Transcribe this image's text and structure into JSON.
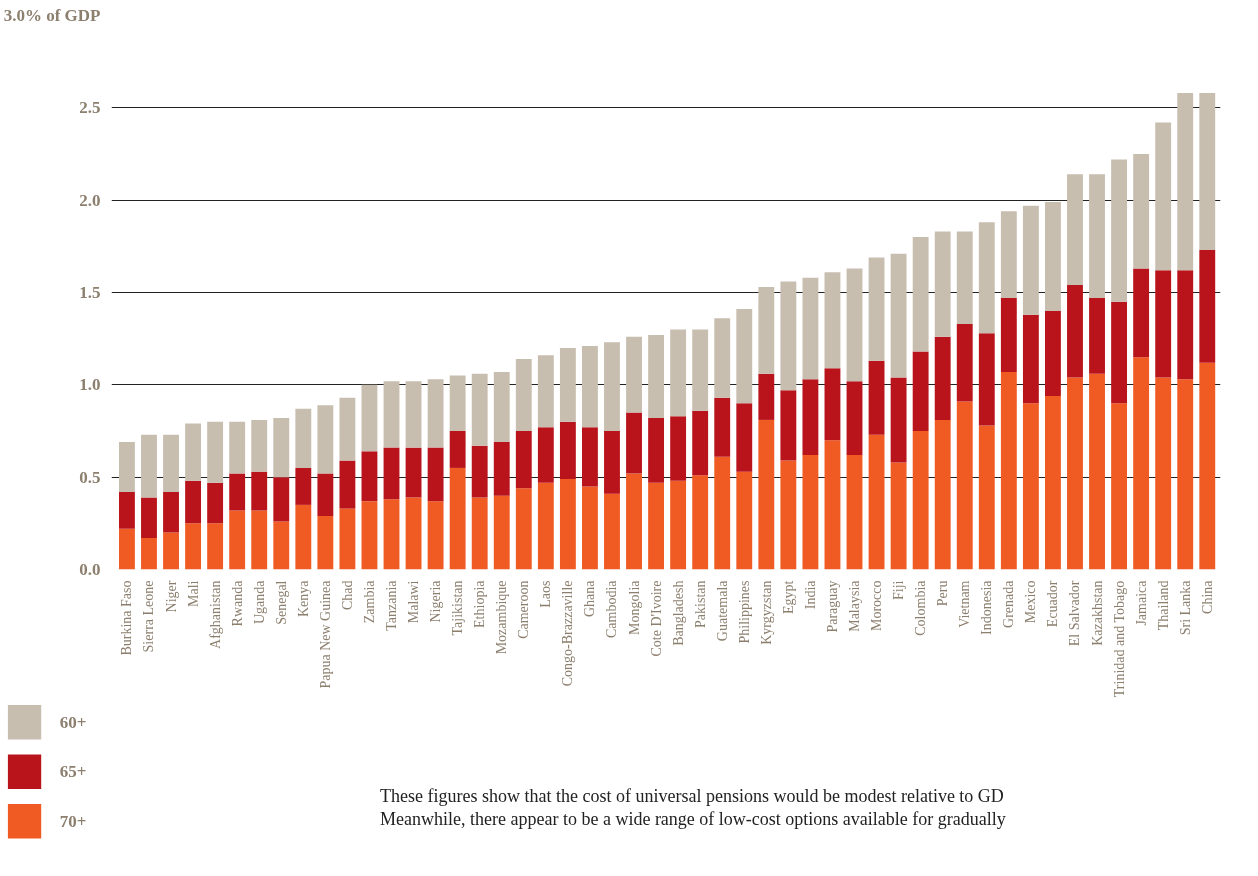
{
  "chart_data": {
    "type": "bar",
    "stacked": true,
    "categories": [
      "Burkina Faso",
      "Sierra Leone",
      "Niger",
      "Mali",
      "Afghanistan",
      "Rwanda",
      "Uganda",
      "Senegal",
      "Kenya",
      "Papua New Guinea",
      "Chad",
      "Zambia",
      "Tanzania",
      "Malawi",
      "Nigeria",
      "Tajikistan",
      "Ethiopia",
      "Mozambique",
      "Cameroon",
      "Laos",
      "Congo-Brazzaville",
      "Ghana",
      "Cambodia",
      "Mongolia",
      "Cote D'Ivoire",
      "Bangladesh",
      "Pakistan",
      "Guatemala",
      "Philippines",
      "Kyrgyzstan",
      "Egypt",
      "India",
      "Paraguay",
      "Malaysia",
      "Morocco",
      "Fiji",
      "Colombia",
      "Peru",
      "Vietnam",
      "Indonesia",
      "Grenada",
      "Mexico",
      "Ecuador",
      "El Salvador",
      "Kazakhstan",
      "Trinidad and Tobago",
      "Jamaica",
      "Thailand",
      "Sri Lanka",
      "China"
    ],
    "series": [
      {
        "name": "70+",
        "color": "#f05a23",
        "values": [
          0.22,
          0.17,
          0.2,
          0.25,
          0.25,
          0.32,
          0.32,
          0.26,
          0.35,
          0.29,
          0.33,
          0.37,
          0.38,
          0.39,
          0.37,
          0.55,
          0.39,
          0.4,
          0.44,
          0.47,
          0.49,
          0.45,
          0.41,
          0.52,
          0.47,
          0.48,
          0.51,
          0.61,
          0.53,
          0.81,
          0.59,
          0.62,
          0.7,
          0.62,
          0.73,
          0.58,
          0.75,
          0.81,
          0.91,
          0.78,
          1.07,
          0.9,
          0.94,
          1.04,
          1.06,
          0.9,
          1.15,
          1.04,
          1.03,
          1.12
        ]
      },
      {
        "name": "65+",
        "color": "#b9141c",
        "values": [
          0.2,
          0.22,
          0.22,
          0.23,
          0.22,
          0.2,
          0.21,
          0.24,
          0.2,
          0.23,
          0.26,
          0.27,
          0.28,
          0.27,
          0.29,
          0.2,
          0.28,
          0.29,
          0.31,
          0.3,
          0.31,
          0.32,
          0.34,
          0.33,
          0.35,
          0.35,
          0.35,
          0.32,
          0.37,
          0.25,
          0.38,
          0.41,
          0.39,
          0.4,
          0.4,
          0.46,
          0.43,
          0.45,
          0.42,
          0.5,
          0.4,
          0.48,
          0.46,
          0.5,
          0.41,
          0.55,
          0.48,
          0.58,
          0.59,
          0.61
        ]
      },
      {
        "name": "60+",
        "color": "#c8beb0",
        "values": [
          0.27,
          0.34,
          0.31,
          0.31,
          0.33,
          0.28,
          0.28,
          0.32,
          0.32,
          0.37,
          0.34,
          0.36,
          0.36,
          0.36,
          0.37,
          0.3,
          0.39,
          0.38,
          0.39,
          0.39,
          0.4,
          0.44,
          0.48,
          0.41,
          0.45,
          0.47,
          0.44,
          0.43,
          0.51,
          0.47,
          0.59,
          0.55,
          0.52,
          0.61,
          0.56,
          0.67,
          0.62,
          0.57,
          0.5,
          0.6,
          0.47,
          0.59,
          0.59,
          0.6,
          0.67,
          0.77,
          0.62,
          0.8,
          0.96,
          0.85
        ]
      }
    ],
    "ylim": [
      0,
      3.0
    ],
    "yticks": [
      {
        "value": 0,
        "label": "0.0"
      },
      0.5,
      {
        "value": 1,
        "label": "1.0"
      },
      1.5,
      {
        "value": 2,
        "label": "2.0"
      },
      2.5,
      {
        "value": 3,
        "label": "3.0% of GDP"
      }
    ],
    "grid": "y",
    "legend": "bottom left",
    "annotations": [
      "These figures show that the cost of universal pensions would be modest relative to GD",
      "Meanwhile, there appear to be a wide range of low-cost options available for gradually"
    ]
  }
}
